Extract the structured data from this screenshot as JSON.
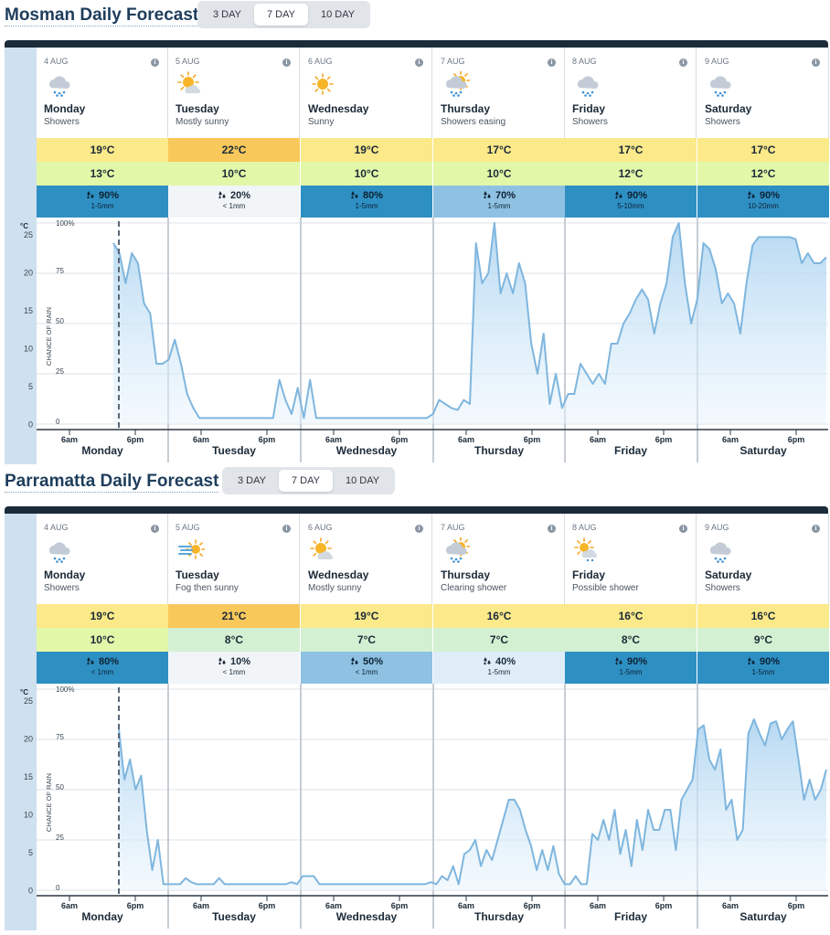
{
  "forecasts": [
    {
      "title": "Mosman Daily Forecast",
      "tabs": [
        "3 DAY",
        "7 DAY",
        "10 DAY"
      ],
      "active_tab": "7 DAY",
      "days": [
        {
          "date": "4 AUG",
          "name": "Monday",
          "desc": "Showers",
          "icon": "showers-icon",
          "max": "19°C",
          "min": "13°C",
          "rain_pct": "90%",
          "rain_amt": "1-5mm",
          "max_color": "#fbe98a",
          "min_color": "#e2f7a8",
          "rain_color": "#2e8fc3",
          "rain_text": "#0d2233"
        },
        {
          "date": "5 AUG",
          "name": "Tuesday",
          "desc": "Mostly sunny",
          "icon": "mostly-sunny-icon",
          "max": "22°C",
          "min": "10°C",
          "rain_pct": "20%",
          "rain_amt": "< 1mm",
          "max_color": "#f9c85a",
          "min_color": "#e2f7a8",
          "rain_color": "#f1f5f8",
          "rain_text": "#1b2a38"
        },
        {
          "date": "6 AUG",
          "name": "Wednesday",
          "desc": "Sunny",
          "icon": "sunny-icon",
          "max": "19°C",
          "min": "10°C",
          "rain_pct": "80%",
          "rain_amt": "1-5mm",
          "max_color": "#fbe98a",
          "min_color": "#e2f7a8",
          "rain_color": "#2e8fc3",
          "rain_text": "#0d2233"
        },
        {
          "date": "7 AUG",
          "name": "Thursday",
          "desc": "Showers easing",
          "icon": "showers-easing-icon",
          "max": "17°C",
          "min": "10°C",
          "rain_pct": "70%",
          "rain_amt": "1-5mm",
          "max_color": "#fbe98a",
          "min_color": "#e2f7a8",
          "rain_color": "#8ec1e2",
          "rain_text": "#0d2233"
        },
        {
          "date": "8 AUG",
          "name": "Friday",
          "desc": "Showers",
          "icon": "showers-icon",
          "max": "17°C",
          "min": "12°C",
          "rain_pct": "90%",
          "rain_amt": "5-10mm",
          "max_color": "#fbe98a",
          "min_color": "#e2f7a8",
          "rain_color": "#2e8fc3",
          "rain_text": "#0d2233"
        },
        {
          "date": "9 AUG",
          "name": "Saturday",
          "desc": "Showers",
          "icon": "showers-icon",
          "max": "17°C",
          "min": "12°C",
          "rain_pct": "90%",
          "rain_amt": "10-20mm",
          "max_color": "#fbe98a",
          "min_color": "#e2f7a8",
          "rain_color": "#2e8fc3",
          "rain_text": "#0d2233"
        }
      ],
      "chart_data": {
        "type": "area",
        "ylabel": "CHANCE OF RAIN",
        "temp_unit": "°C",
        "temp_ticks": [
          "25",
          "20",
          "15",
          "10",
          "5",
          "0"
        ],
        "rain_ticks": [
          "100%",
          "75",
          "50",
          "25",
          "0"
        ],
        "x_ticks": [
          "6am",
          "6pm"
        ],
        "days": [
          "Monday",
          "Tuesday",
          "Wednesday",
          "Thursday",
          "Friday",
          "Saturday"
        ],
        "now_hour": 15,
        "rain_hour_start": 14,
        "rain_chance": [
          90,
          85,
          70,
          85,
          80,
          60,
          55,
          30,
          30,
          32,
          42,
          30,
          15,
          8,
          3,
          3,
          3,
          3,
          3,
          3,
          3,
          3,
          3,
          3,
          3,
          3,
          3,
          22,
          12,
          5,
          18,
          3,
          22,
          3,
          3,
          3,
          3,
          3,
          3,
          3,
          3,
          3,
          3,
          3,
          3,
          3,
          3,
          3,
          3,
          3,
          3,
          3,
          5,
          12,
          10,
          8,
          7,
          12,
          10,
          90,
          70,
          75,
          100,
          65,
          75,
          65,
          80,
          70,
          40,
          25,
          45,
          10,
          25,
          8,
          15,
          15,
          30,
          25,
          20,
          25,
          20,
          40,
          40,
          50,
          55,
          62,
          67,
          62,
          45,
          60,
          70,
          93,
          100,
          70,
          50,
          62,
          90,
          87,
          77,
          60,
          65,
          60,
          45,
          70,
          89,
          93,
          93,
          93,
          93,
          93,
          93,
          92,
          80,
          85,
          80,
          80,
          83
        ]
      }
    },
    {
      "title": "Parramatta Daily Forecast",
      "tabs": [
        "3 DAY",
        "7 DAY",
        "10 DAY"
      ],
      "active_tab": "7 DAY",
      "days": [
        {
          "date": "4 AUG",
          "name": "Monday",
          "desc": "Showers",
          "icon": "showers-icon",
          "max": "19°C",
          "min": "10°C",
          "rain_pct": "80%",
          "rain_amt": "< 1mm",
          "max_color": "#fbe98a",
          "min_color": "#e2f7a8",
          "rain_color": "#2e8fc3",
          "rain_text": "#0d2233"
        },
        {
          "date": "5 AUG",
          "name": "Tuesday",
          "desc": "Fog then sunny",
          "icon": "fog-then-sunny-icon",
          "max": "21°C",
          "min": "8°C",
          "rain_pct": "10%",
          "rain_amt": "< 1mm",
          "max_color": "#f9c85a",
          "min_color": "#d4f0d2",
          "rain_color": "#f1f5f8",
          "rain_text": "#1b2a38"
        },
        {
          "date": "6 AUG",
          "name": "Wednesday",
          "desc": "Mostly sunny",
          "icon": "mostly-sunny-icon",
          "max": "19°C",
          "min": "7°C",
          "rain_pct": "50%",
          "rain_amt": "< 1mm",
          "max_color": "#fbe98a",
          "min_color": "#d4f0d2",
          "rain_color": "#8ec1e2",
          "rain_text": "#0d2233"
        },
        {
          "date": "7 AUG",
          "name": "Thursday",
          "desc": "Clearing shower",
          "icon": "clearing-shower-icon",
          "max": "16°C",
          "min": "7°C",
          "rain_pct": "40%",
          "rain_amt": "1-5mm",
          "max_color": "#fbe98a",
          "min_color": "#d4f0d2",
          "rain_color": "#deedf8",
          "rain_text": "#1b2a38"
        },
        {
          "date": "8 AUG",
          "name": "Friday",
          "desc": "Possible shower",
          "icon": "possible-shower-icon",
          "max": "16°C",
          "min": "8°C",
          "rain_pct": "90%",
          "rain_amt": "1-5mm",
          "max_color": "#fbe98a",
          "min_color": "#d4f0d2",
          "rain_color": "#2e8fc3",
          "rain_text": "#0d2233"
        },
        {
          "date": "9 AUG",
          "name": "Saturday",
          "desc": "Showers",
          "icon": "showers-icon",
          "max": "16°C",
          "min": "9°C",
          "rain_pct": "90%",
          "rain_amt": "1-5mm",
          "max_color": "#fbe98a",
          "min_color": "#d4f0d2",
          "rain_color": "#2e8fc3",
          "rain_text": "#0d2233"
        }
      ],
      "chart_data": {
        "type": "area",
        "ylabel": "CHANCE OF RAIN",
        "temp_unit": "°C",
        "temp_ticks": [
          "25",
          "20",
          "15",
          "10",
          "5",
          "0"
        ],
        "rain_ticks": [
          "100%",
          "75",
          "50",
          "25",
          "0"
        ],
        "x_ticks": [
          "6am",
          "6pm"
        ],
        "days": [
          "Monday",
          "Tuesday",
          "Wednesday",
          "Thursday",
          "Friday",
          "Saturday"
        ],
        "now_hour": 15,
        "rain_hour_start": 15,
        "rain_chance": [
          80,
          55,
          65,
          50,
          57,
          30,
          10,
          25,
          3,
          3,
          3,
          3,
          6,
          4,
          3,
          3,
          3,
          3,
          6,
          3,
          3,
          3,
          3,
          3,
          3,
          3,
          3,
          3,
          3,
          3,
          3,
          4,
          3,
          7,
          7,
          7,
          3,
          3,
          3,
          3,
          3,
          3,
          3,
          3,
          3,
          3,
          3,
          3,
          3,
          3,
          3,
          3,
          3,
          3,
          3,
          3,
          4,
          3,
          7,
          5,
          12,
          3,
          18,
          20,
          25,
          12,
          20,
          15,
          25,
          35,
          45,
          45,
          40,
          30,
          22,
          10,
          20,
          10,
          22,
          8,
          3,
          3,
          7,
          3,
          3,
          28,
          25,
          35,
          25,
          40,
          18,
          30,
          12,
          35,
          20,
          40,
          30,
          30,
          40,
          40,
          20,
          45,
          50,
          55,
          80,
          82,
          65,
          60,
          70,
          40,
          45,
          25,
          30,
          78,
          85,
          78,
          72,
          83,
          84,
          75,
          80,
          84,
          65,
          45,
          55,
          45,
          50,
          60
        ]
      }
    }
  ]
}
